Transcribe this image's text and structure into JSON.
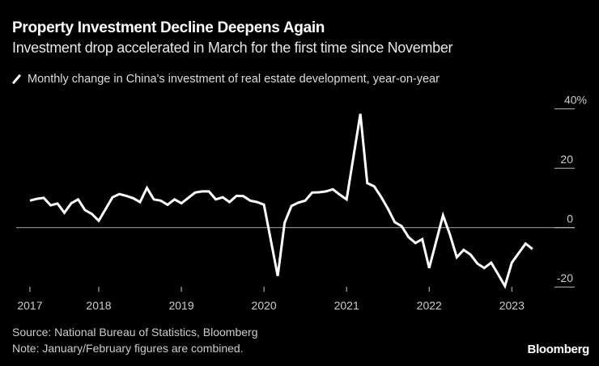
{
  "title": "Property Investment Decline Deepens Again",
  "subtitle": "Investment drop accelerated in March for the first time since November",
  "source": "Source: National Bureau of Statistics, Bloomberg",
  "note": "Note: January/February figures are combined.",
  "brand": "Bloomberg",
  "chart_data": {
    "type": "line",
    "legend": "Monthly change in China's investment of real estate development, year-on-year",
    "legend_placement": "top-left",
    "y_unit": "%",
    "ylim": [
      -20,
      40
    ],
    "y_ticks": [
      {
        "value": 40,
        "label": "40%"
      },
      {
        "value": 20,
        "label": "20"
      },
      {
        "value": 0,
        "label": "0"
      },
      {
        "value": -20,
        "label": "-20"
      }
    ],
    "x_ticks": [
      {
        "year": 2017,
        "label": "2017"
      },
      {
        "year": 2018,
        "label": "2018"
      },
      {
        "year": 2019,
        "label": "2019"
      },
      {
        "year": 2020,
        "label": "2020"
      },
      {
        "year": 2021,
        "label": "2021"
      },
      {
        "year": 2022,
        "label": "2022"
      },
      {
        "year": 2023,
        "label": "2023"
      }
    ],
    "grid": false,
    "zero_line": true,
    "line_color": "#ffffff",
    "series": [
      {
        "x": [
          "2017-02",
          "2017-03",
          "2017-04",
          "2017-05",
          "2017-06",
          "2017-07",
          "2017-08",
          "2017-09",
          "2017-10",
          "2017-11",
          "2017-12",
          "2018-02",
          "2018-03",
          "2018-04",
          "2018-05",
          "2018-06",
          "2018-07",
          "2018-08",
          "2018-09",
          "2018-10",
          "2018-11",
          "2018-12",
          "2019-02",
          "2019-03",
          "2019-04",
          "2019-05",
          "2019-06",
          "2019-07",
          "2019-08",
          "2019-09",
          "2019-10",
          "2019-11",
          "2019-12",
          "2020-02",
          "2020-03",
          "2020-04",
          "2020-05",
          "2020-06",
          "2020-07",
          "2020-08",
          "2020-09",
          "2020-10",
          "2020-11",
          "2020-12",
          "2021-02",
          "2021-03",
          "2021-04",
          "2021-05",
          "2021-06",
          "2021-07",
          "2021-08",
          "2021-09",
          "2021-10",
          "2021-11",
          "2021-12",
          "2022-02",
          "2022-03",
          "2022-04",
          "2022-05",
          "2022-06",
          "2022-07",
          "2022-08",
          "2022-09",
          "2022-10",
          "2022-11",
          "2022-12",
          "2023-02",
          "2023-03"
        ],
        "values": [
          9.1,
          9.7,
          10.0,
          7.5,
          8.1,
          5.0,
          8.2,
          9.5,
          5.9,
          4.6,
          2.3,
          10.2,
          11.3,
          10.7,
          9.9,
          8.6,
          13.4,
          9.5,
          9.1,
          7.7,
          9.5,
          8.2,
          11.8,
          12.2,
          12.2,
          9.5,
          10.2,
          8.6,
          10.7,
          10.6,
          9.1,
          8.6,
          7.7,
          -16.3,
          1.6,
          7.3,
          8.4,
          9.1,
          11.8,
          11.9,
          12.2,
          12.9,
          11.1,
          9.5,
          38.3,
          15.0,
          13.9,
          10.4,
          6.4,
          1.8,
          0.5,
          -3.2,
          -5.2,
          -3.9,
          -13.6,
          4.1,
          -2.3,
          -10.0,
          -7.5,
          -9.1,
          -12.1,
          -13.6,
          -11.8,
          -15.7,
          -19.7,
          -11.8,
          -5.4,
          -7.2
        ]
      }
    ]
  }
}
